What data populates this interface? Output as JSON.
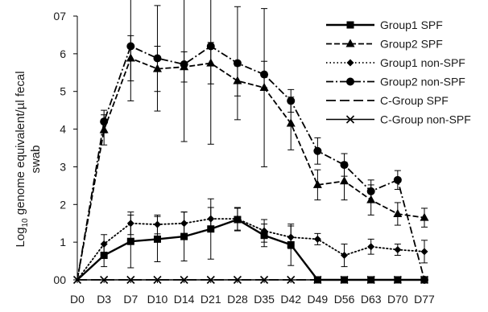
{
  "chart_data": {
    "type": "line",
    "title": "",
    "xlabel": "",
    "ylabel_base": "Log",
    "ylabel_sub": "10",
    "ylabel_rest": " genome equivalent/µl fecal",
    "ylabel_line2": "swab",
    "ylim": [
      0,
      7
    ],
    "yticks": [
      "00",
      "1",
      "2",
      "3",
      "4",
      "5",
      "6",
      "07"
    ],
    "categories": [
      "D0",
      "D3",
      "D7",
      "D10",
      "D14",
      "D21",
      "D28",
      "D35",
      "D42",
      "D49",
      "D56",
      "D63",
      "D70",
      "D77"
    ],
    "legend_position": "right",
    "grid": false,
    "series": [
      {
        "name": "Group1 SPF",
        "line": "solid",
        "marker": "square",
        "values": [
          0,
          0.65,
          1.02,
          1.08,
          1.15,
          1.35,
          1.6,
          1.18,
          0.93,
          0,
          0,
          0,
          0,
          0
        ],
        "err": [
          0,
          0.3,
          0.7,
          0.6,
          0.65,
          0.8,
          0.3,
          0.3,
          0.55,
          0,
          0,
          0,
          0,
          0
        ]
      },
      {
        "name": "Group2 SPF",
        "line": "dashed",
        "marker": "triangle",
        "values": [
          0,
          3.98,
          5.88,
          5.6,
          5.65,
          5.75,
          5.28,
          5.1,
          4.15,
          2.52,
          2.62,
          2.12,
          1.75,
          1.65
        ],
        "err": [
          0,
          0.4,
          0.6,
          0.6,
          0.4,
          0.55,
          0.4,
          2.1,
          0.7,
          0.4,
          0.5,
          0.4,
          0.3,
          0.25
        ]
      },
      {
        "name": "Group1 non-SPF",
        "line": "dotted",
        "marker": "diamond",
        "values": [
          0,
          0.95,
          1.5,
          1.47,
          1.5,
          1.62,
          1.62,
          1.3,
          1.13,
          1.08,
          0.65,
          0.88,
          0.8,
          0.75
        ],
        "err": [
          0,
          0.25,
          0.3,
          0.25,
          0.3,
          0.3,
          0.3,
          0.3,
          0.3,
          0.15,
          0.3,
          0.2,
          0.15,
          0.3
        ]
      },
      {
        "name": "Group2 non-SPF",
        "line": "dashdot",
        "marker": "circle",
        "values": [
          0,
          4.2,
          6.2,
          5.88,
          5.72,
          6.2,
          5.75,
          5.45,
          4.75,
          3.42,
          3.05,
          2.35,
          2.65,
          0
        ],
        "err": [
          0,
          0.3,
          1.45,
          1.4,
          2.05,
          2.6,
          1.5,
          0.35,
          0.3,
          0.35,
          0.3,
          0.3,
          0.25,
          0
        ]
      },
      {
        "name": "C-Group SPF",
        "line": "longdash",
        "marker": "none",
        "values": [
          0,
          0,
          0,
          0,
          0,
          0,
          0,
          0,
          0,
          0,
          0,
          0,
          0,
          0
        ],
        "err": [
          0,
          0,
          0,
          0,
          0,
          0,
          0,
          0,
          0,
          0,
          0,
          0,
          0,
          0
        ]
      },
      {
        "name": "C-Group non-SPF",
        "line": "solid-thin",
        "marker": "cross",
        "values": [
          0,
          0,
          0,
          0,
          0,
          0,
          0,
          0,
          0,
          0,
          0,
          0,
          0,
          0
        ],
        "err": [
          0,
          0,
          0,
          0,
          0,
          0,
          0,
          0,
          0,
          0,
          0,
          0,
          0,
          0
        ]
      }
    ]
  }
}
